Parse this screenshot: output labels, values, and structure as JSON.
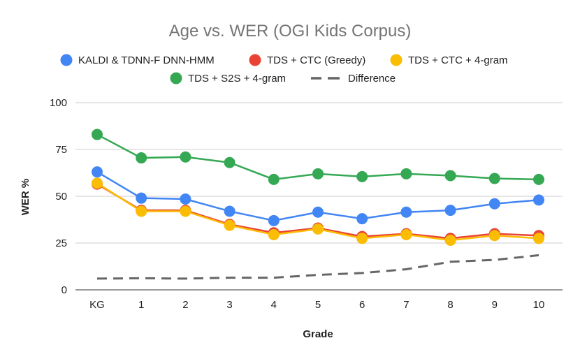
{
  "chart_data": {
    "type": "line",
    "title": "Age vs. WER (OGI Kids Corpus)",
    "xlabel": "Grade",
    "ylabel": "WER %",
    "categories": [
      "KG",
      "1",
      "2",
      "3",
      "4",
      "5",
      "6",
      "7",
      "8",
      "9",
      "10"
    ],
    "ylim": [
      0,
      100
    ],
    "yticks": [
      "0",
      "25",
      "50",
      "75",
      "100"
    ],
    "ytick_values": [
      0,
      25,
      50,
      75,
      100
    ],
    "grid": true,
    "legend_position": "top",
    "series": [
      {
        "name": "KALDI & TDNN-F DNN-HMM",
        "color": "#4285F4",
        "style": "line-marker",
        "values": [
          63.0,
          49.0,
          48.5,
          42.0,
          37.0,
          41.5,
          38.0,
          41.5,
          42.5,
          46.0,
          48.0
        ]
      },
      {
        "name": "TDS + CTC (Greedy)",
        "color": "#EA4335",
        "style": "line-marker",
        "values": [
          56.5,
          42.5,
          42.5,
          35.0,
          30.5,
          33.0,
          28.5,
          30.0,
          27.5,
          30.0,
          29.0
        ]
      },
      {
        "name": "TDS + CTC + 4-gram",
        "color": "#FBBC04",
        "style": "line-marker",
        "values": [
          57.0,
          42.0,
          42.0,
          34.5,
          29.5,
          32.5,
          27.5,
          29.5,
          26.5,
          29.0,
          27.5
        ]
      },
      {
        "name": "TDS + S2S + 4-gram",
        "color": "#34A853",
        "style": "line-marker",
        "values": [
          83.0,
          70.5,
          71.0,
          68.0,
          59.0,
          62.0,
          60.5,
          62.0,
          61.0,
          59.5,
          59.0
        ]
      },
      {
        "name": "Difference",
        "color": "#666666",
        "style": "dashed",
        "values": [
          6.0,
          6.2,
          6.0,
          6.5,
          6.5,
          8.0,
          9.0,
          11.0,
          15.0,
          16.0,
          18.5
        ]
      }
    ]
  }
}
